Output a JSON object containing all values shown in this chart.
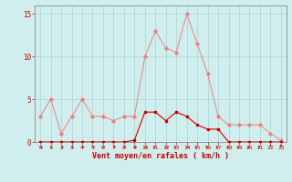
{
  "x": [
    0,
    1,
    2,
    3,
    4,
    5,
    6,
    7,
    8,
    9,
    10,
    11,
    12,
    13,
    14,
    15,
    16,
    17,
    18,
    19,
    20,
    21,
    22,
    23
  ],
  "rafales": [
    3,
    5,
    1,
    3,
    5,
    3,
    3,
    2.5,
    3,
    3,
    10,
    13,
    11,
    10.5,
    15,
    11.5,
    8,
    3,
    2,
    2,
    2,
    2,
    1,
    0.2
  ],
  "moyen": [
    0,
    0,
    0,
    0,
    0,
    0,
    0,
    0,
    0,
    0.2,
    3.5,
    3.5,
    2.5,
    3.5,
    3,
    2,
    1.5,
    1.5,
    0,
    0,
    0,
    0,
    0,
    0
  ],
  "bg_color": "#d0eeee",
  "grid_color": "#a8d4d4",
  "line_color_rafales": "#f08080",
  "line_color_moyen": "#cc0000",
  "xlabel": "Vent moyen/en rafales ( km/h )",
  "xlabel_color": "#cc0000",
  "tick_color": "#cc0000",
  "ylim": [
    0,
    16
  ],
  "xlim": [
    -0.5,
    23.5
  ],
  "yticks": [
    0,
    5,
    10,
    15
  ],
  "figsize": [
    3.2,
    2.0
  ],
  "dpi": 100
}
